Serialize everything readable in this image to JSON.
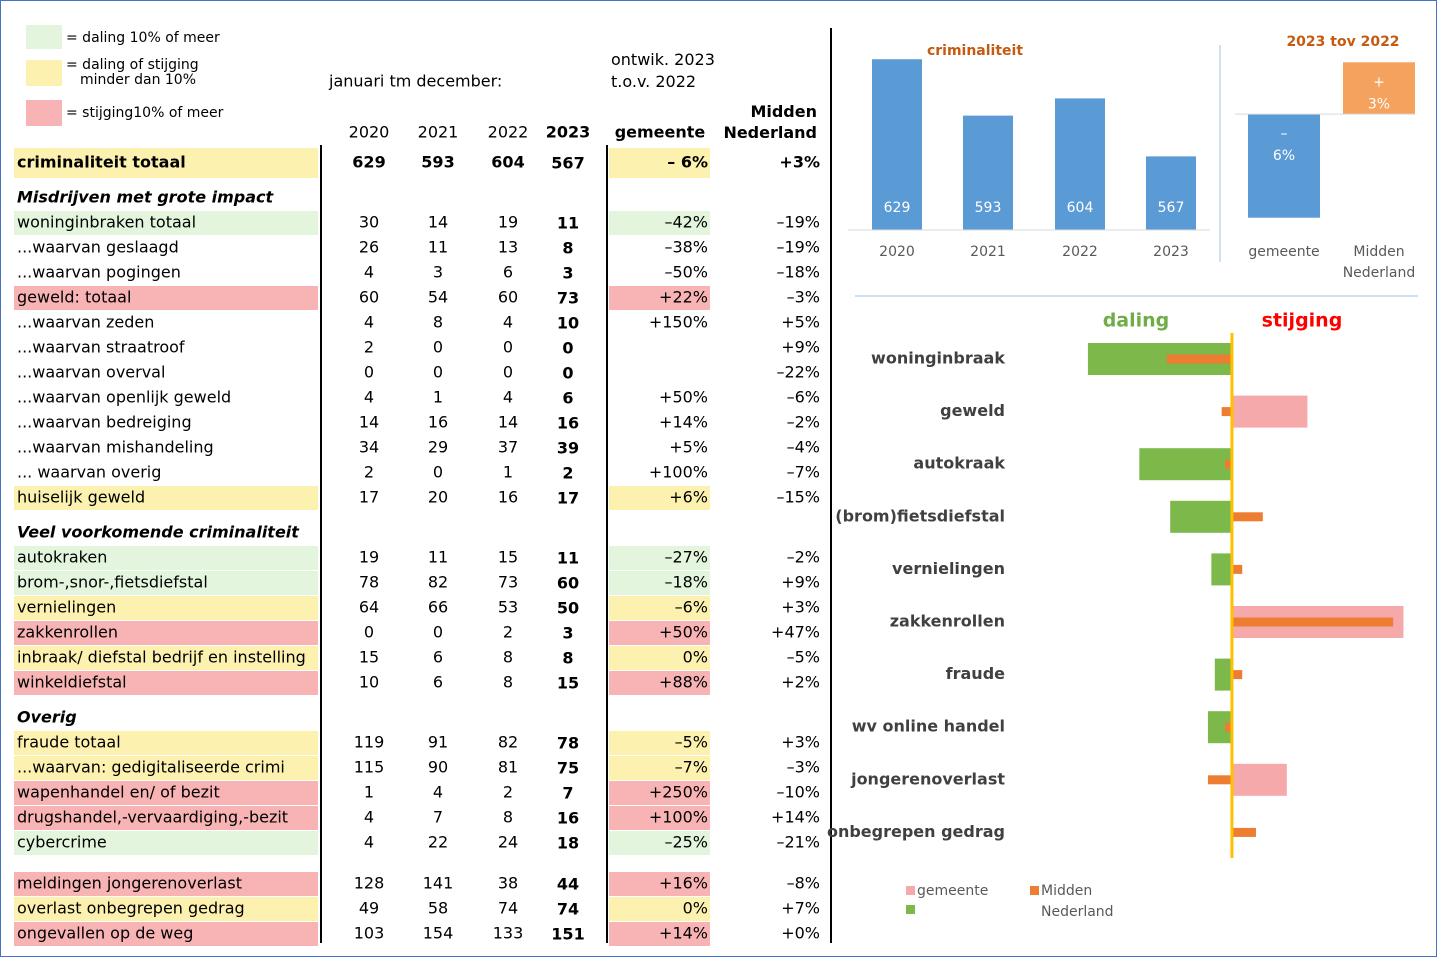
{
  "legend": [
    {
      "color": "#e3f5dc",
      "label": "= daling 10% of meer"
    },
    {
      "color": "#fdf1b0",
      "label": "= daling of stijging minder dan 10%"
    },
    {
      "color": "#f8b4b4",
      "label": "= stijging10% of meer"
    }
  ],
  "table": {
    "period": "januari tm december:",
    "comparison": "ontwik. 2023 t.o.v. 2022",
    "columns": [
      "2020",
      "2021",
      "2022",
      "2023",
      "gemeente",
      "Midden Nederland"
    ],
    "groups": [
      {
        "rows": [
          {
            "label": "criminaliteit totaal",
            "values": [
              629,
              593,
              604,
              567
            ],
            "gemeente": "– 6%",
            "midden": "+3%",
            "fill": "#fdf1b0"
          }
        ]
      },
      {
        "title": "Misdrijven met grote impact",
        "rows": [
          {
            "label": "woninginbraken totaal",
            "values": [
              30,
              14,
              19,
              11
            ],
            "gemeente": "–42%",
            "midden": "–19%",
            "fill": "#e3f5dc"
          },
          {
            "label": "...waarvan geslaagd",
            "values": [
              26,
              11,
              13,
              8
            ],
            "gemeente": "–38%",
            "midden": "–19%",
            "fill": null
          },
          {
            "label": "...waarvan pogingen",
            "values": [
              4,
              3,
              6,
              3
            ],
            "gemeente": "–50%",
            "midden": "–18%",
            "fill": null
          },
          {
            "label": "geweld: totaal",
            "values": [
              60,
              54,
              60,
              73
            ],
            "gemeente": "+22%",
            "midden": "–3%",
            "fill": "#f8b4b4"
          },
          {
            "label": "...waarvan zeden",
            "values": [
              4,
              8,
              4,
              10
            ],
            "gemeente": "+150%",
            "midden": "+5%",
            "fill": null
          },
          {
            "label": "...waarvan straatroof",
            "values": [
              2,
              0,
              0,
              0
            ],
            "gemeente": null,
            "midden": "+9%",
            "fill": null
          },
          {
            "label": "...waarvan overval",
            "values": [
              0,
              0,
              0,
              0
            ],
            "gemeente": null,
            "midden": "–22%",
            "fill": null
          },
          {
            "label": "...waarvan openlijk geweld",
            "values": [
              4,
              1,
              4,
              6
            ],
            "gemeente": "+50%",
            "midden": "–6%",
            "fill": null
          },
          {
            "label": "...waarvan bedreiging",
            "values": [
              14,
              16,
              14,
              16
            ],
            "gemeente": "+14%",
            "midden": "–2%",
            "fill": null
          },
          {
            "label": "...waarvan mishandeling",
            "values": [
              34,
              29,
              37,
              39
            ],
            "gemeente": "+5%",
            "midden": "–4%",
            "fill": null
          },
          {
            "label": "... waarvan overig",
            "values": [
              2,
              0,
              1,
              2
            ],
            "gemeente": "+100%",
            "midden": "–7%",
            "fill": null
          },
          {
            "label": "huiselijk geweld",
            "values": [
              17,
              20,
              16,
              17
            ],
            "gemeente": "+6%",
            "midden": "–15%",
            "fill": "#fdf1b0"
          }
        ]
      },
      {
        "title": "Veel voorkomende criminaliteit",
        "rows": [
          {
            "label": "autokraken",
            "values": [
              19,
              11,
              15,
              11
            ],
            "gemeente": "–27%",
            "midden": "–2%",
            "fill": "#e3f5dc"
          },
          {
            "label": "brom-,snor-,fietsdiefstal",
            "values": [
              78,
              82,
              73,
              60
            ],
            "gemeente": "–18%",
            "midden": "+9%",
            "fill": "#e3f5dc"
          },
          {
            "label": "vernielingen",
            "values": [
              64,
              66,
              53,
              50
            ],
            "gemeente": "–6%",
            "midden": "+3%",
            "fill": "#fdf1b0"
          },
          {
            "label": "zakkenrollen",
            "values": [
              0,
              0,
              2,
              3
            ],
            "gemeente": "+50%",
            "midden": "+47%",
            "fill": "#f8b4b4"
          },
          {
            "label": "inbraak/ diefstal bedrijf en instelling",
            "values": [
              15,
              6,
              8,
              8
            ],
            "gemeente": "0%",
            "midden": "–5%",
            "fill": "#fdf1b0"
          },
          {
            "label": "winkeldiefstal",
            "values": [
              10,
              6,
              8,
              15
            ],
            "gemeente": "+88%",
            "midden": "+2%",
            "fill": "#f8b4b4"
          }
        ]
      },
      {
        "title": "Overig",
        "rows": [
          {
            "label": "fraude totaal",
            "values": [
              119,
              91,
              82,
              78
            ],
            "gemeente": "–5%",
            "midden": "+3%",
            "fill": "#fdf1b0"
          },
          {
            "label": "...waarvan: gedigitaliseerde crimi",
            "values": [
              115,
              90,
              81,
              75
            ],
            "gemeente": "–7%",
            "midden": "–3%",
            "fill": "#fdf1b0"
          },
          {
            "label": "wapenhandel en/ of bezit",
            "values": [
              1,
              4,
              2,
              7
            ],
            "gemeente": "+250%",
            "midden": "–10%",
            "fill": "#f8b4b4"
          },
          {
            "label": "drugshandel,-vervaardiging,-bezit",
            "values": [
              4,
              7,
              8,
              16
            ],
            "gemeente": "+100%",
            "midden": "+14%",
            "fill": "#f8b4b4"
          },
          {
            "label": "cybercrime",
            "values": [
              4,
              22,
              24,
              18
            ],
            "gemeente": "–25%",
            "midden": "–21%",
            "fill": "#e3f5dc"
          }
        ]
      },
      {
        "rows": [
          {
            "label": "meldingen jongerenoverlast",
            "values": [
              128,
              141,
              38,
              44
            ],
            "gemeente": "+16%",
            "midden": "–8%",
            "fill": "#f8b4b4"
          },
          {
            "label": "overlast onbegrepen gedrag",
            "values": [
              49,
              58,
              74,
              74
            ],
            "gemeente": "0%",
            "midden": "+7%",
            "fill": "#fdf1b0"
          },
          {
            "label": "ongevallen op de weg",
            "values": [
              103,
              154,
              133,
              151
            ],
            "gemeente": "+14%",
            "midden": "+0%",
            "fill": "#f8b4b4"
          }
        ]
      }
    ]
  },
  "chart_data": [
    {
      "type": "bar",
      "title": "criminaliteit",
      "categories": [
        "2020",
        "2021",
        "2022",
        "2023"
      ],
      "values": [
        629,
        593,
        604,
        567
      ],
      "color": "#5b9bd5",
      "ylim": [
        520,
        640
      ]
    },
    {
      "type": "bar",
      "title": "2023 tov 2022",
      "categories": [
        "gemeente",
        "Midden Nederland"
      ],
      "values": [
        -6,
        3
      ],
      "value_labels": [
        "–6%",
        "+3%"
      ],
      "colors": [
        "#5b9bd5",
        "#f4a25e"
      ],
      "ylim": [
        -7,
        4
      ]
    },
    {
      "type": "barh",
      "left_label": "daling",
      "right_label": "stijging",
      "categories": [
        "woninginbraak",
        "geweld",
        "autokraak",
        "(brom)fietsdiefstal",
        "vernielingen",
        "zakkenrollen",
        "fraude",
        "wv online handel",
        "jongerenoverlast",
        "onbegrepen gedrag"
      ],
      "series": [
        {
          "name": "gemeente",
          "color": "#f6a9ab",
          "negative_color": "#7cb84a",
          "values": [
            -42,
            22,
            -27,
            -18,
            -6,
            50,
            -5,
            -7,
            16,
            0
          ]
        },
        {
          "name": "Midden Nederland",
          "color": "#ed7d31",
          "values": [
            -19,
            -3,
            -2,
            9,
            3,
            47,
            3,
            -2,
            -7,
            7
          ]
        }
      ],
      "zero_line_color": "#ffc000",
      "xlim": [
        -52,
        52
      ]
    }
  ]
}
